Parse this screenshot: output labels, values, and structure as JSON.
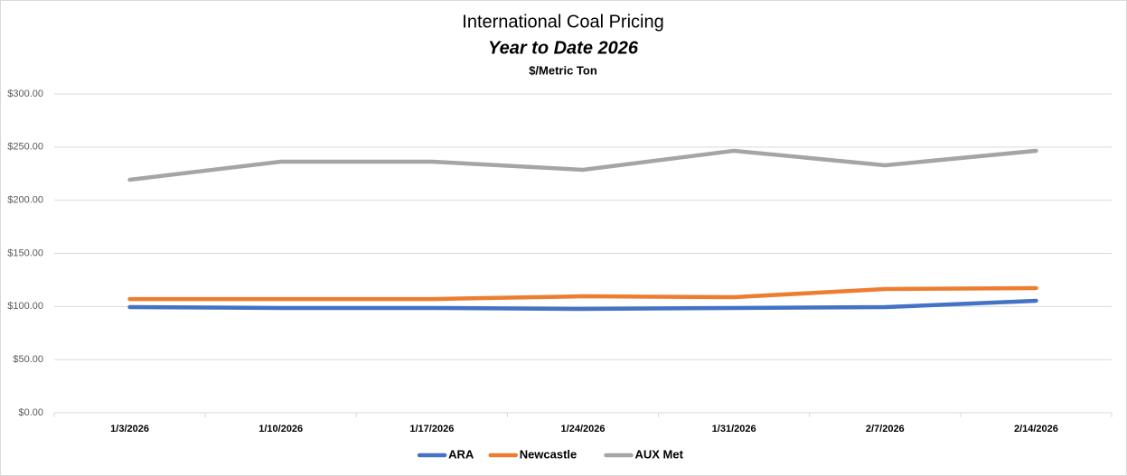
{
  "chart_data": {
    "type": "line",
    "title": "International Coal Pricing",
    "subtitle": "Year to Date 2026",
    "y_label": "$/Metric Ton",
    "categories": [
      "1/3/2026",
      "1/10/2026",
      "1/17/2026",
      "1/24/2026",
      "1/31/2026",
      "2/7/2026",
      "2/14/2026"
    ],
    "series": [
      {
        "name": "ARA",
        "color": "#4472c4",
        "values": [
          99.4,
          98.6,
          98.6,
          97.7,
          98.6,
          99.4,
          105.4
        ]
      },
      {
        "name": "Newcastle",
        "color": "#ed7d31",
        "values": [
          107,
          107,
          107,
          109.6,
          108.8,
          116.4,
          117.3
        ]
      },
      {
        "name": "AUX Met",
        "color": "#a5a5a5",
        "values": [
          219.3,
          236.3,
          236.3,
          228.6,
          246.5,
          232.9,
          246.5
        ]
      }
    ],
    "ylim": [
      0,
      300
    ],
    "yticks": [
      {
        "value": 0,
        "label": "$0.00"
      },
      {
        "value": 50,
        "label": "$50.00"
      },
      {
        "value": 100,
        "label": "$100.00"
      },
      {
        "value": 150,
        "label": "$150.00"
      },
      {
        "value": 200,
        "label": "$200.00"
      },
      {
        "value": 250,
        "label": "$250.00"
      },
      {
        "value": 300,
        "label": "$300.00"
      }
    ],
    "grid": true,
    "legend": "bottom"
  }
}
